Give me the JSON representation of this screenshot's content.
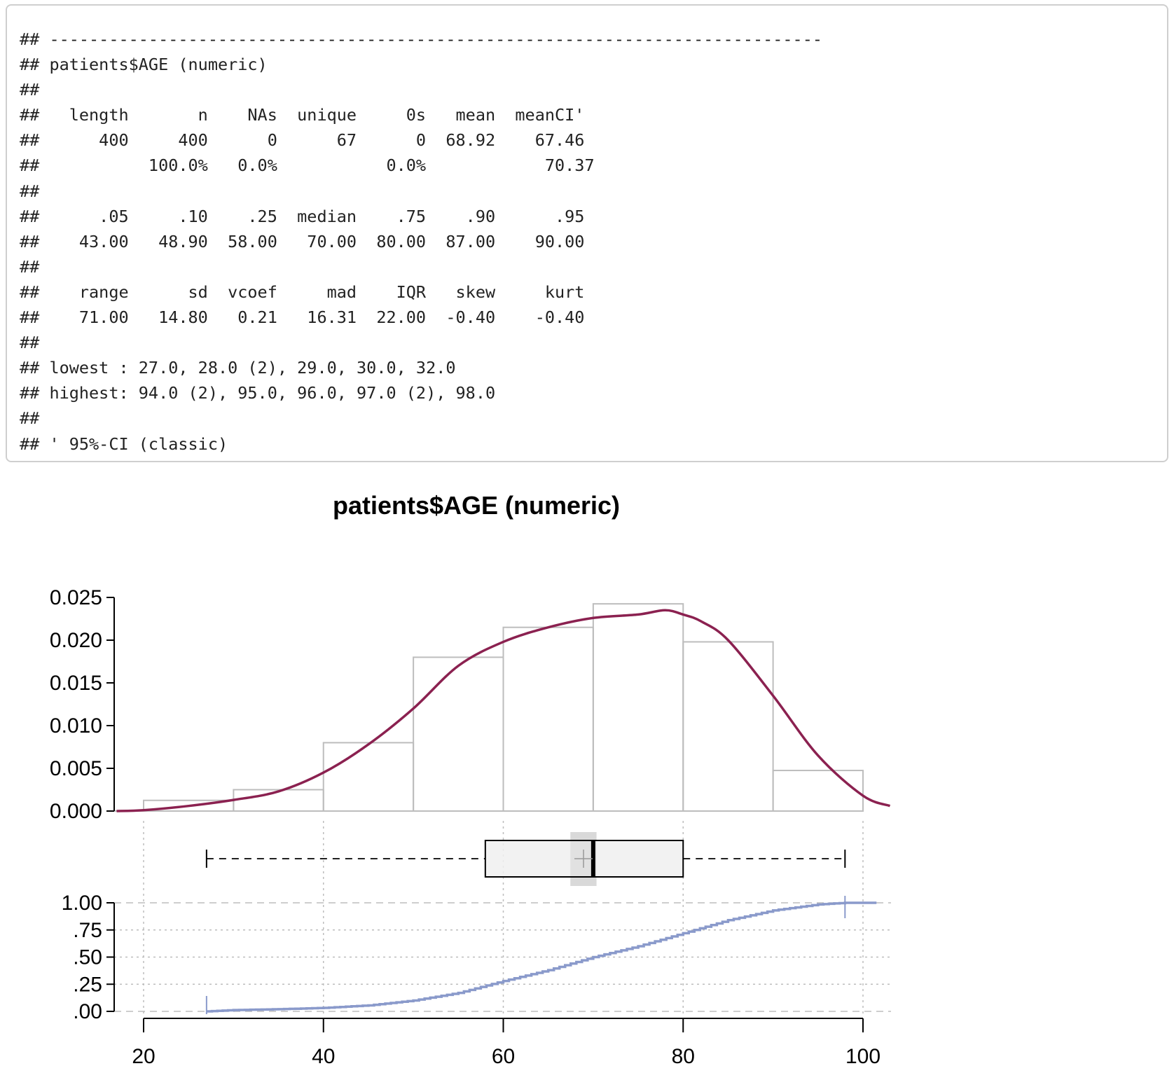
{
  "console": {
    "lines": [
      "## ------------------------------------------------------------------------------",
      "## patients$AGE (numeric)",
      "##",
      "##   length       n    NAs  unique     0s   mean  meanCI'",
      "##      400     400      0      67      0  68.92    67.46",
      "##           100.0%   0.0%           0.0%            70.37",
      "##",
      "##      .05     .10    .25  median    .75    .90      .95",
      "##    43.00   48.90  58.00   70.00  80.00  87.00    90.00",
      "##",
      "##    range      sd  vcoef     mad    IQR   skew     kurt",
      "##    71.00   14.80   0.21   16.31  22.00  -0.40    -0.40",
      "##",
      "## lowest : 27.0, 28.0 (2), 29.0, 30.0, 32.0",
      "## highest: 94.0 (2), 95.0, 96.0, 97.0 (2), 98.0",
      "##",
      "## ' 95%-CI (classic)"
    ]
  },
  "chart_data": {
    "type": "histogram",
    "title": "patients$AGE (numeric)",
    "colors": {
      "density": "#8b2150",
      "ecdf": "#8a9acb",
      "hist_border": "#bdbdbd",
      "box_fill": "#f0f0f0",
      "mean_ci": "#d9d9d9",
      "grid": "#bdbdbd"
    },
    "histogram": {
      "bins": [
        {
          "from": 20,
          "to": 30,
          "density": 0.00125
        },
        {
          "from": 30,
          "to": 40,
          "density": 0.0025
        },
        {
          "from": 40,
          "to": 50,
          "density": 0.008
        },
        {
          "from": 50,
          "to": 60,
          "density": 0.018
        },
        {
          "from": 60,
          "to": 70,
          "density": 0.0215
        },
        {
          "from": 70,
          "to": 80,
          "density": 0.02425
        },
        {
          "from": 80,
          "to": 90,
          "density": 0.0198
        },
        {
          "from": 90,
          "to": 100,
          "density": 0.00475
        }
      ],
      "ylim": [
        0,
        0.025
      ],
      "yticks": [
        "0.000",
        "0.005",
        "0.010",
        "0.015",
        "0.020",
        "0.025"
      ],
      "density_curve": [
        [
          17,
          0.0
        ],
        [
          20,
          0.0001
        ],
        [
          25,
          0.0006
        ],
        [
          30,
          0.0013
        ],
        [
          35,
          0.0023
        ],
        [
          40,
          0.0045
        ],
        [
          45,
          0.0078
        ],
        [
          50,
          0.012
        ],
        [
          55,
          0.017
        ],
        [
          60,
          0.0198
        ],
        [
          65,
          0.0215
        ],
        [
          70,
          0.0226
        ],
        [
          75,
          0.023
        ],
        [
          78,
          0.0235
        ],
        [
          80,
          0.023
        ],
        [
          82,
          0.0222
        ],
        [
          85,
          0.02
        ],
        [
          90,
          0.0135
        ],
        [
          95,
          0.0065
        ],
        [
          100,
          0.0018
        ],
        [
          103,
          0.0006
        ]
      ]
    },
    "boxplot": {
      "min": 27,
      "q1": 58,
      "median": 70,
      "q3": 80,
      "max": 98,
      "mean": 68.92,
      "mean_ci": [
        67.46,
        70.37
      ]
    },
    "ecdf": {
      "ylim": [
        0,
        1
      ],
      "yticks": [
        "1.00",
        ".75",
        ".50",
        ".25",
        ".00"
      ],
      "curve": [
        [
          27,
          0.0
        ],
        [
          30,
          0.012
        ],
        [
          35,
          0.02
        ],
        [
          40,
          0.032
        ],
        [
          45,
          0.055
        ],
        [
          50,
          0.1
        ],
        [
          55,
          0.17
        ],
        [
          60,
          0.28
        ],
        [
          65,
          0.38
        ],
        [
          70,
          0.5
        ],
        [
          75,
          0.6
        ],
        [
          80,
          0.72
        ],
        [
          85,
          0.84
        ],
        [
          90,
          0.93
        ],
        [
          95,
          0.985
        ],
        [
          98,
          1.0
        ]
      ]
    },
    "xaxis": {
      "range": [
        17,
        103
      ],
      "ticks": [
        "20",
        "40",
        "60",
        "80",
        "100"
      ]
    }
  }
}
